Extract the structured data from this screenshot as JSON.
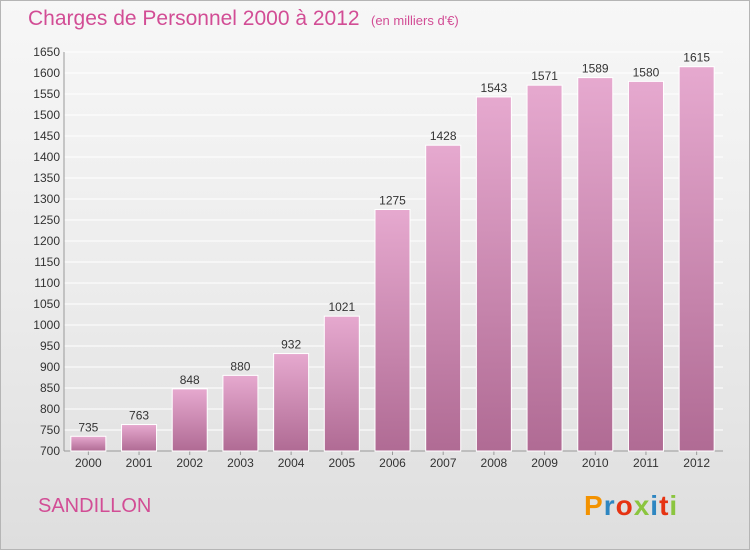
{
  "header": {
    "title": "Charges de Personnel 2000 à 2012",
    "subtitle": "(en milliers d'€)"
  },
  "footer": {
    "commune": "SANDILLON",
    "brand": "Proxiti"
  },
  "colors": {
    "title": "#d24d95",
    "bar_top": "#e6a9cf",
    "bar_bottom": "#b06b94",
    "grid": "#ffffff",
    "text": "#333333",
    "brand_letters": [
      "#f39200",
      "#2e86c1",
      "#e63312",
      "#8bc53f",
      "#2e86c1",
      "#e63312",
      "#8bc53f"
    ]
  },
  "chart_data": {
    "type": "bar",
    "categories": [
      "2000",
      "2001",
      "2002",
      "2003",
      "2004",
      "2005",
      "2006",
      "2007",
      "2008",
      "2009",
      "2010",
      "2011",
      "2012"
    ],
    "values": [
      735,
      763,
      848,
      880,
      932,
      1021,
      1275,
      1428,
      1543,
      1571,
      1589,
      1580,
      1615
    ],
    "ylim": [
      700,
      1650
    ],
    "yticks": [
      700,
      750,
      800,
      850,
      900,
      950,
      1000,
      1050,
      1100,
      1150,
      1200,
      1250,
      1300,
      1350,
      1400,
      1450,
      1500,
      1550,
      1600,
      1650
    ],
    "grid": true,
    "legend": "none"
  }
}
